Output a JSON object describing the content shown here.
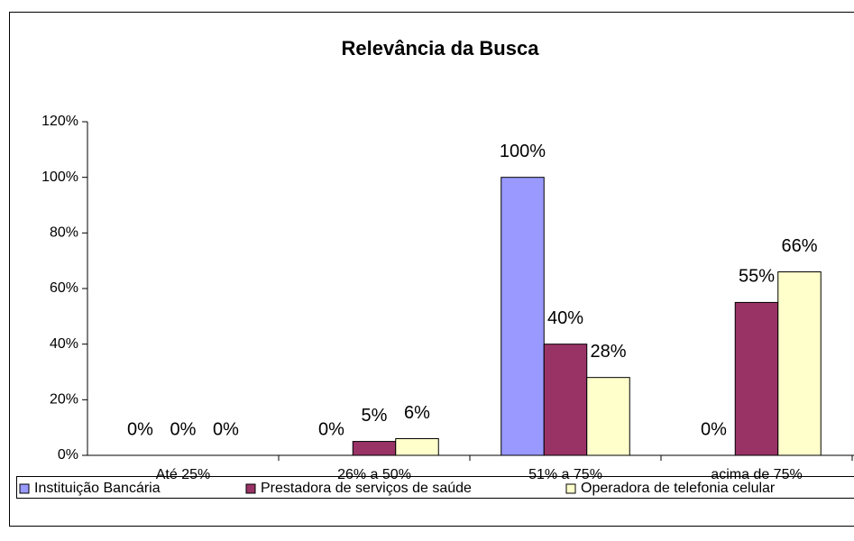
{
  "chart_data": {
    "type": "bar",
    "title": "Relevância da Busca",
    "categories": [
      "Até 25%",
      "26% a 50%",
      "51% a 75%",
      "acima de 75%"
    ],
    "series": [
      {
        "name": "Instituição Bancária",
        "color": "#9999ff",
        "values": [
          0,
          0,
          100,
          0
        ],
        "value_labels": [
          "0%",
          "0%",
          "100%",
          "0%"
        ]
      },
      {
        "name": "Prestadora de serviços de saúde",
        "color": "#993366",
        "values": [
          0,
          5,
          40,
          55
        ],
        "value_labels": [
          "0%",
          "5%",
          "40%",
          "55%"
        ]
      },
      {
        "name": "Operadora de telefonia celular",
        "color": "#ffffcc",
        "values": [
          0,
          6,
          28,
          66
        ],
        "value_labels": [
          "0%",
          "6%",
          "28%",
          "66%"
        ]
      }
    ],
    "ylim": [
      0,
      120
    ],
    "yticks": [
      {
        "value": 0,
        "label": "0%"
      },
      {
        "value": 20,
        "label": "20%"
      },
      {
        "value": 40,
        "label": "40%"
      },
      {
        "value": 60,
        "label": "60%"
      },
      {
        "value": 80,
        "label": "80%"
      },
      {
        "value": 100,
        "label": "100%"
      },
      {
        "value": 120,
        "label": "120%"
      }
    ],
    "grid": false,
    "legend": "bottom"
  }
}
